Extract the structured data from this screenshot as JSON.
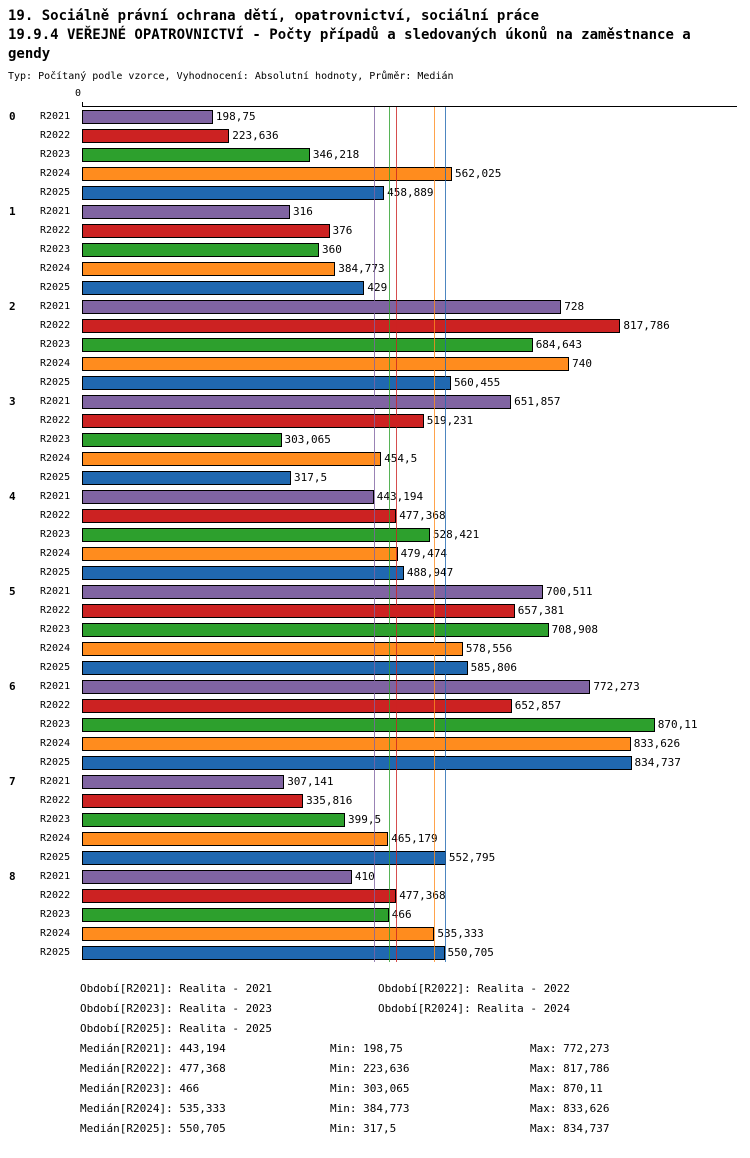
{
  "header": {
    "title_line1": "19. Sociálně právní ochrana dětí, opatrovnictví, sociální práce",
    "title_line2": "19.9.4 VEŘEJNÉ OPATROVNICTVÍ - Počty případů a sledovaných úkonů na zaměstnance a",
    "title_line3": "gendy",
    "subtitle": "Typ: Počítaný podle vzorce, Vyhodnocení: Absolutní hodnoty, Průměr: Medián"
  },
  "chart_data": {
    "type": "bar",
    "orientation": "horizontal",
    "axis": {
      "zero_label": "0",
      "xlim": [
        0,
        995
      ],
      "grid": false
    },
    "series_names": [
      "R2021",
      "R2022",
      "R2023",
      "R2024",
      "R2025"
    ],
    "series_colors": [
      "#8064A2",
      "#CC2222",
      "#2DA02D",
      "#FF8C1E",
      "#2068B0"
    ],
    "groups": [
      {
        "label": "0",
        "values": [
          198.75,
          223.636,
          346.218,
          562.025,
          458.889
        ],
        "value_labels": [
          "198,75",
          "223,636",
          "346,218",
          "562,025",
          "458,889"
        ]
      },
      {
        "label": "1",
        "values": [
          316,
          376,
          360,
          384.773,
          429
        ],
        "value_labels": [
          "316",
          "376",
          "360",
          "384,773",
          "429"
        ]
      },
      {
        "label": "2",
        "values": [
          728,
          817.786,
          684.643,
          740,
          560.455
        ],
        "value_labels": [
          "728",
          "817,786",
          "684,643",
          "740",
          "560,455"
        ]
      },
      {
        "label": "3",
        "values": [
          651.857,
          519.231,
          303.065,
          454.5,
          317.5
        ],
        "value_labels": [
          "651,857",
          "519,231",
          "303,065",
          "454,5",
          "317,5"
        ]
      },
      {
        "label": "4",
        "values": [
          443.194,
          477.368,
          528.421,
          479.474,
          488.947
        ],
        "value_labels": [
          "443,194",
          "477,368",
          "528,421",
          "479,474",
          "488,947"
        ]
      },
      {
        "label": "5",
        "values": [
          700.511,
          657.381,
          708.908,
          578.556,
          585.806
        ],
        "value_labels": [
          "700,511",
          "657,381",
          "708,908",
          "578,556",
          "585,806"
        ]
      },
      {
        "label": "6",
        "values": [
          772.273,
          652.857,
          870.11,
          833.626,
          834.737
        ],
        "value_labels": [
          "772,273",
          "652,857",
          "870,11",
          "833,626",
          "834,737"
        ]
      },
      {
        "label": "7",
        "values": [
          307.141,
          335.816,
          399.5,
          465.179,
          552.795
        ],
        "value_labels": [
          "307,141",
          "335,816",
          "399,5",
          "465,179",
          "552,795"
        ]
      },
      {
        "label": "8",
        "values": [
          410,
          477.368,
          466,
          535.333,
          550.705
        ],
        "value_labels": [
          "410",
          "477,368",
          "466",
          "535,333",
          "550,705"
        ]
      }
    ],
    "median_lines": [
      443.194,
      477.368,
      466,
      535.333,
      550.705
    ]
  },
  "legend": {
    "period_rows": [
      [
        "Období[R2021]: Realita - 2021",
        "Období[R2022]: Realita - 2022"
      ],
      [
        "Období[R2023]: Realita - 2023",
        "Období[R2024]: Realita - 2024"
      ],
      [
        "Období[R2025]: Realita - 2025",
        ""
      ]
    ],
    "stat_rows": [
      [
        "Medián[R2021]: 443,194",
        "Min: 198,75",
        "Max: 772,273"
      ],
      [
        "Medián[R2022]: 477,368",
        "Min: 223,636",
        "Max: 817,786"
      ],
      [
        "Medián[R2023]: 466",
        "Min: 303,065",
        "Max: 870,11"
      ],
      [
        "Medián[R2024]: 535,333",
        "Min: 384,773",
        "Max: 833,626"
      ],
      [
        "Medián[R2025]: 550,705",
        "Min: 317,5",
        "Max: 834,737"
      ]
    ]
  }
}
